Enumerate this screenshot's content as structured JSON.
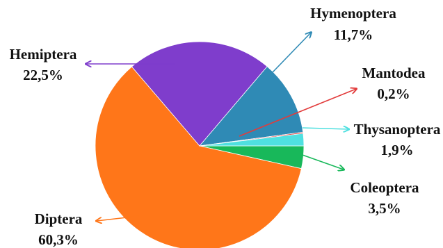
{
  "chart_data": {
    "type": "pie",
    "start_angle_deg": 0,
    "direction": "clockwise",
    "slices": [
      {
        "label": "Coleoptera",
        "value": 3.5,
        "value_label": "3,5%",
        "color": "#18b85a"
      },
      {
        "label": "Diptera",
        "value": 60.3,
        "value_label": "60,3%",
        "color": "#ff7619"
      },
      {
        "label": "Hemiptera",
        "value": 22.5,
        "value_label": "22,5%",
        "color": "#7f3dcc"
      },
      {
        "label": "Hymenoptera",
        "value": 11.7,
        "value_label": "11,7%",
        "color": "#2f8ab5"
      },
      {
        "label": "Mantodea",
        "value": 0.2,
        "value_label": "0,2%",
        "color": "#e23b3b"
      },
      {
        "label": "Thysanoptera",
        "value": 1.9,
        "value_label": "1,9%",
        "color": "#4fe0e0"
      }
    ]
  }
}
